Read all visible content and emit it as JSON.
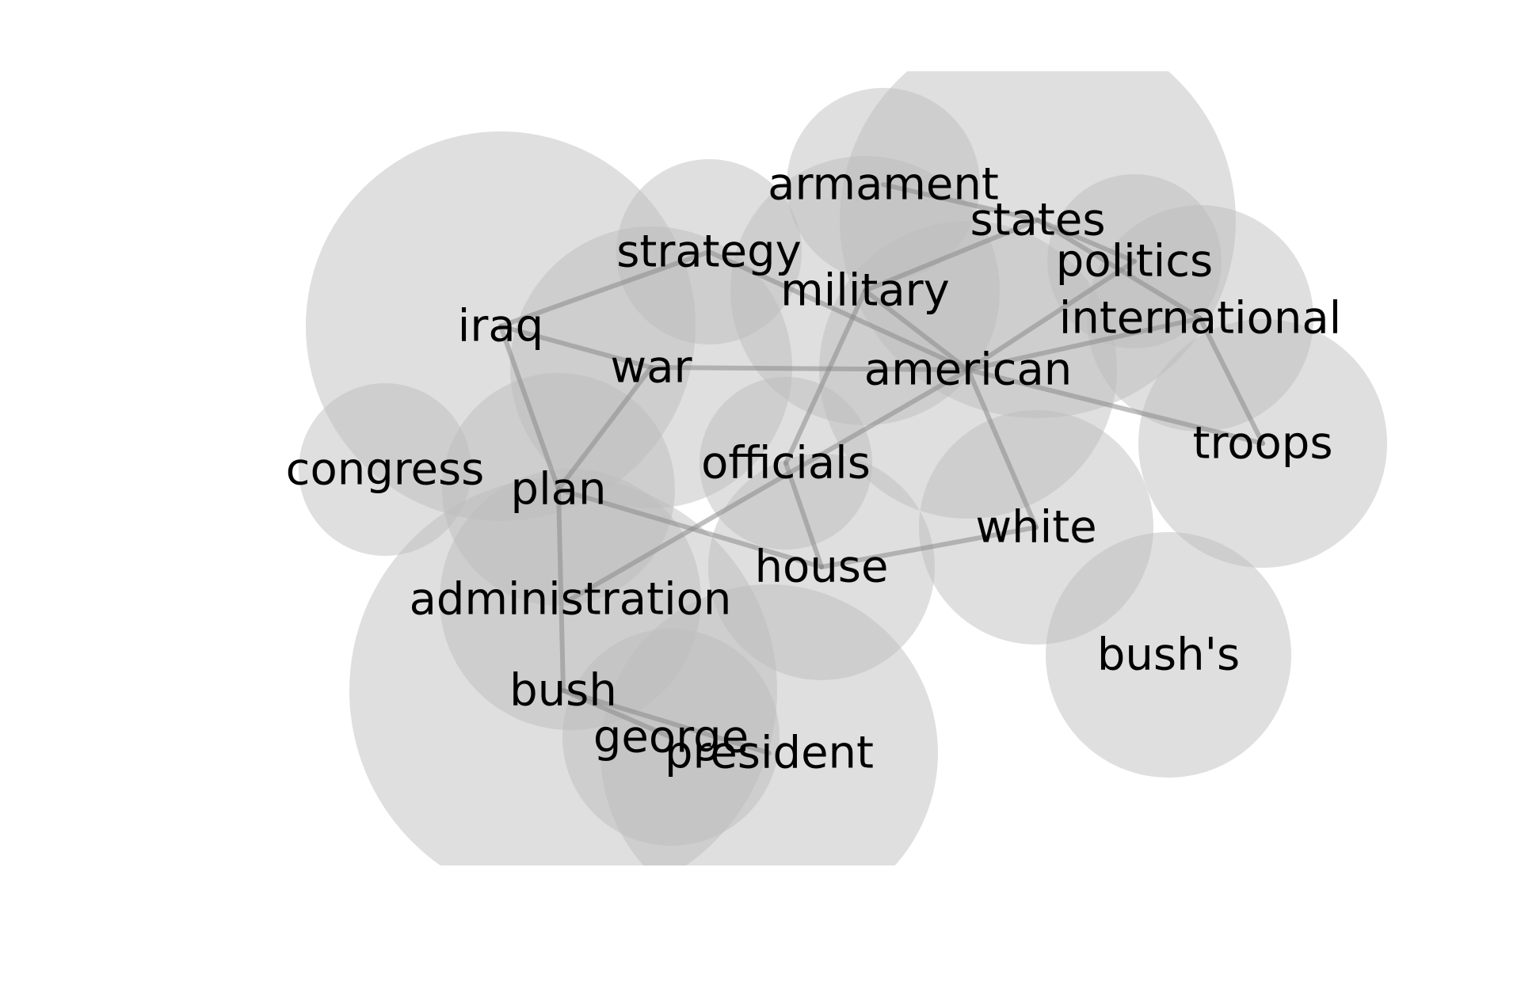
{
  "style": {
    "bubble_color": "#bdbdbd",
    "bubble_opacity": 0.48,
    "edge_color": "#8a8a8a",
    "edge_opacity": 0.55,
    "label_color": "#000000",
    "background": "#ffffff"
  },
  "nodes": [
    {
      "id": "iraq",
      "label": "iraq"
    },
    {
      "id": "strategy",
      "label": "strategy"
    },
    {
      "id": "armament",
      "label": "armament"
    },
    {
      "id": "states",
      "label": "states"
    },
    {
      "id": "politics",
      "label": "politics"
    },
    {
      "id": "military",
      "label": "military"
    },
    {
      "id": "international",
      "label": "international"
    },
    {
      "id": "war",
      "label": "war"
    },
    {
      "id": "american",
      "label": "american"
    },
    {
      "id": "troops",
      "label": "troops"
    },
    {
      "id": "congress",
      "label": "congress"
    },
    {
      "id": "officials",
      "label": "officials"
    },
    {
      "id": "plan",
      "label": "plan"
    },
    {
      "id": "white",
      "label": "white"
    },
    {
      "id": "house",
      "label": "house"
    },
    {
      "id": "administration",
      "label": "administration"
    },
    {
      "id": "bushs",
      "label": "bush's"
    },
    {
      "id": "bush",
      "label": "bush"
    },
    {
      "id": "george",
      "label": "george"
    },
    {
      "id": "president",
      "label": "president"
    }
  ],
  "edges": [
    [
      "iraq",
      "strategy"
    ],
    [
      "iraq",
      "war"
    ],
    [
      "iraq",
      "plan"
    ],
    [
      "strategy",
      "american"
    ],
    [
      "war",
      "american"
    ],
    [
      "war",
      "plan"
    ],
    [
      "plan",
      "house"
    ],
    [
      "plan",
      "bush"
    ],
    [
      "bush",
      "george"
    ],
    [
      "bush",
      "president"
    ],
    [
      "military",
      "officials"
    ],
    [
      "military",
      "states"
    ],
    [
      "military",
      "american"
    ],
    [
      "armament",
      "states"
    ],
    [
      "states",
      "politics"
    ],
    [
      "states",
      "international"
    ],
    [
      "politics",
      "american"
    ],
    [
      "american",
      "international"
    ],
    [
      "american",
      "troops"
    ],
    [
      "american",
      "white"
    ],
    [
      "american",
      "administration"
    ],
    [
      "officials",
      "house"
    ],
    [
      "house",
      "white"
    ],
    [
      "international",
      "troops"
    ]
  ]
}
